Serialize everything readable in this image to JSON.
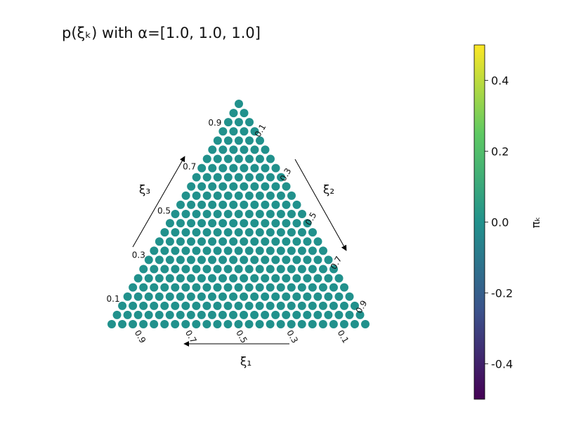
{
  "chart_data": {
    "type": "scatter",
    "title": "p(ξₖ) with α=[1.0, 1.0, 1.0]",
    "grid_resolution": 24,
    "marker_value": 0.0,
    "marker_color": "#21918c",
    "colormap": "viridis",
    "axes": {
      "xi1": {
        "label": "ξ₁",
        "ticks": [
          "0.9",
          "0.7",
          "0.5",
          "0.3",
          "0.1"
        ]
      },
      "xi2": {
        "label": "ξ₂",
        "ticks": [
          "0.1",
          "0.3",
          "0.5",
          "0.7",
          "0.9"
        ]
      },
      "xi3": {
        "label": "ξ₃",
        "ticks": [
          "0.1",
          "0.3",
          "0.5",
          "0.7",
          "0.9"
        ]
      }
    },
    "colorbar": {
      "label": "πₖ",
      "vmin": -0.5,
      "vmax": 0.5,
      "ticks": [
        "0.4",
        "0.2",
        "0.0",
        "-0.2",
        "-0.4"
      ],
      "tick_values": [
        0.4,
        0.2,
        0.0,
        -0.2,
        -0.4
      ],
      "stops": [
        "#440154",
        "#3b528b",
        "#21918c",
        "#5ec962",
        "#fde725"
      ]
    }
  }
}
